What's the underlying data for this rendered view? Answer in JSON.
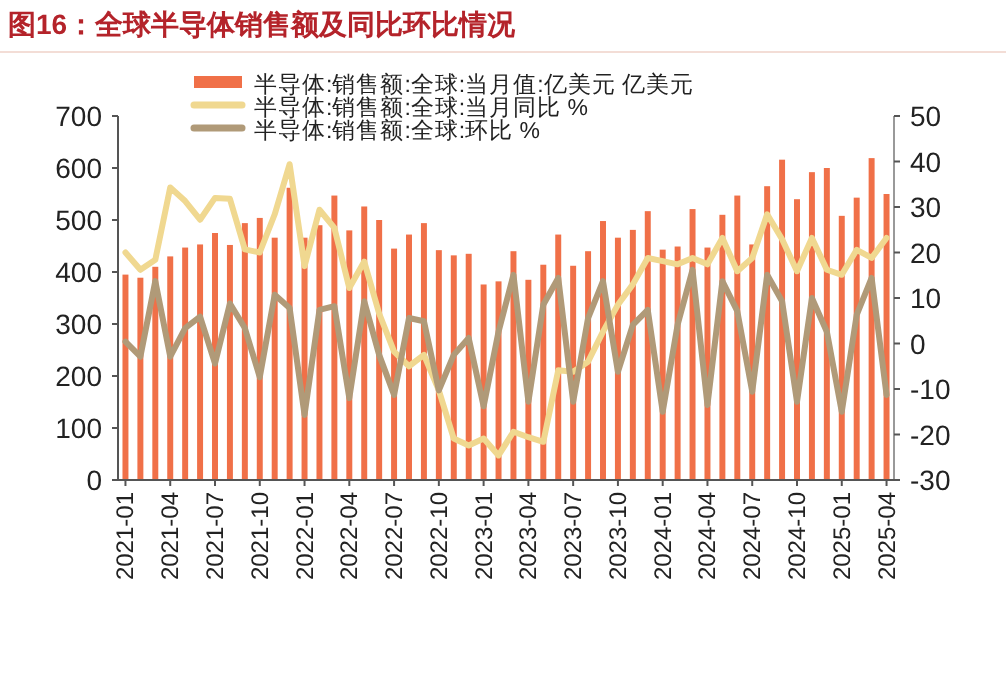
{
  "chart_data": {
    "type": "bar",
    "title": "图16：全球半导体销售额及同比环比情况",
    "categories": [
      "2021-01",
      null,
      null,
      "2021-04",
      null,
      null,
      "2021-07",
      null,
      null,
      "2021-10",
      null,
      null,
      "2022-01",
      null,
      null,
      "2022-04",
      null,
      null,
      "2022-07",
      null,
      null,
      "2022-10",
      null,
      null,
      "2023-01",
      null,
      null,
      "2023-04",
      null,
      null,
      "2023-07",
      null,
      null,
      "2023-10",
      null,
      null,
      "2024-01",
      null,
      null,
      "2024-04",
      null,
      null,
      "2024-07",
      null,
      null,
      "2024-10",
      null,
      null,
      "2025-01",
      null,
      null,
      "2025-04"
    ],
    "series": [
      {
        "name": "半导体:销售额:全球:当月值:亿美元 亿美元",
        "color": "#f07048",
        "values": [
          395,
          389,
          410,
          430,
          447,
          453,
          475,
          452,
          494,
          504,
          466,
          562,
          466,
          490,
          547,
          480,
          526,
          500,
          445,
          472,
          494,
          442,
          432,
          435,
          376,
          382,
          440,
          385,
          414,
          472,
          412,
          440,
          498,
          466,
          481,
          517,
          443,
          449,
          521,
          447,
          510,
          547,
          453,
          565,
          616,
          540,
          592,
          600,
          508,
          543,
          619,
          550
        ]
      },
      {
        "name": "半导体:销售额:全球:当月同比 %",
        "type": "line",
        "axis": "y2",
        "color": "#f0d890",
        "values": [
          20,
          16.2,
          18.4,
          34.3,
          31.3,
          27.2,
          32,
          31.8,
          20.7,
          20,
          28.4,
          39.4,
          17,
          29.4,
          25.4,
          12.2,
          18,
          6.6,
          -1.8,
          -5,
          -2.5,
          -10.3,
          -20.9,
          -22.4,
          -20.9,
          -24.6,
          -19.4,
          -20.6,
          -21.6,
          -5.9,
          -6.2,
          -4,
          2.6,
          8.5,
          13,
          18.8,
          18.1,
          17.4,
          18.8,
          17.4,
          23.2,
          15.9,
          18.8,
          28.4,
          22.9,
          15.9,
          23.2,
          16.2,
          15.1,
          20.6,
          18.8,
          23.2
        ]
      },
      {
        "name": "半导体:销售额:全球:环比 %",
        "type": "line",
        "axis": "y2",
        "color": "#b09a78",
        "values": [
          0.4,
          -2.9,
          13.7,
          -2.9,
          3.4,
          5.9,
          -4.4,
          8.8,
          3.4,
          -7.4,
          10.7,
          7.8,
          -15.7,
          7.4,
          8.2,
          -12,
          9.3,
          -2.5,
          -11.3,
          5.6,
          4.9,
          -10.3,
          -2.5,
          1.2,
          -13.8,
          2.6,
          15.1,
          -12.8,
          8.5,
          14.4,
          -12.8,
          5.6,
          13.7,
          -6.2,
          4.1,
          7.4,
          -15,
          4.1,
          16.2,
          -13.5,
          13.7,
          7.1,
          -10.6,
          15.1,
          9.3,
          -12.8,
          10,
          2.6,
          -15,
          6.3,
          14.4,
          -11.3
        ]
      }
    ],
    "ylim": [
      0,
      700
    ],
    "yticks": [
      0,
      100,
      200,
      300,
      400,
      500,
      600,
      700
    ],
    "y2lim": [
      -30,
      50
    ],
    "y2ticks": [
      -30,
      -20,
      -10,
      0,
      10,
      20,
      30,
      40,
      50
    ],
    "legend": "top",
    "grid": false
  }
}
